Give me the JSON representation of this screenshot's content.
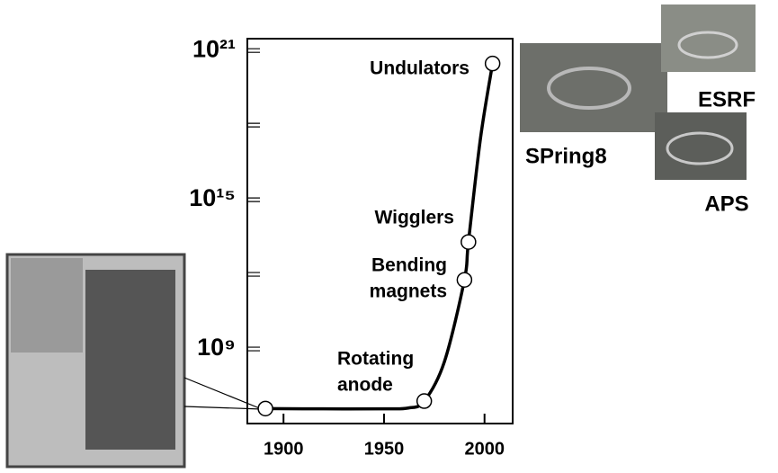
{
  "chart_data": {
    "type": "line",
    "yscale": "log",
    "xlim": [
      1882,
      2014
    ],
    "xticks": [
      1900,
      1950,
      2000
    ],
    "ylim": [
      1000000,
      3000000000000000000000
    ],
    "yticks": [
      {
        "value": 1000000000,
        "label": "10⁹"
      },
      {
        "value": 1000000000000000,
        "label": "10¹⁵"
      },
      {
        "value": 1000000000000000000000,
        "label": "10²¹"
      }
    ],
    "minor_yticks": [
      1000000000000,
      1000000000000000000
    ],
    "color": "#000000",
    "x": [
      1891,
      1920,
      1950,
      1962,
      1970,
      1980,
      1990,
      1992,
      1998,
      2004
    ],
    "values": [
      4000000,
      3900000,
      3900000,
      4200000,
      8000000,
      300000000,
      600000000000,
      20000000000000,
      300000000000000000,
      300000000000000000000
    ],
    "points": [
      {
        "x": 1891,
        "value": 4000000
      },
      {
        "label": [
          "Rotating",
          "anode"
        ],
        "x": 1970,
        "value": 8000000
      },
      {
        "label": [
          "Bending",
          "magnets"
        ],
        "x": 1990,
        "value": 600000000000
      },
      {
        "label": [
          "Wigglers"
        ],
        "x": 1992,
        "value": 20000000000000
      },
      {
        "label": [
          "Undulators"
        ],
        "x": 2004,
        "value": 300000000000000000000
      }
    ],
    "images": [
      "ESRF",
      "SPring8",
      "APS"
    ]
  }
}
